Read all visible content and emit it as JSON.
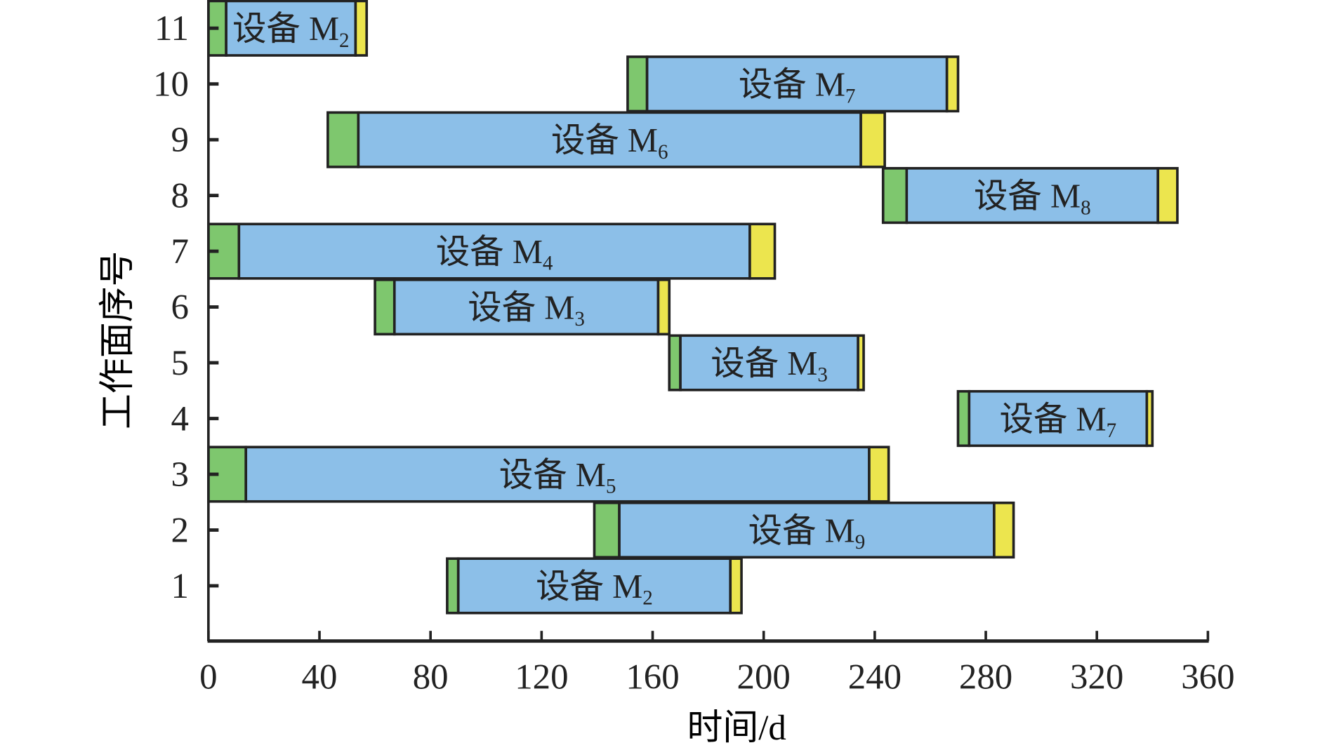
{
  "chart_data": {
    "type": "gantt",
    "xlabel": "时间/d",
    "ylabel": "工作面序号",
    "xlim": [
      0,
      360
    ],
    "xticks": [
      0,
      40,
      80,
      120,
      160,
      200,
      240,
      280,
      320,
      360
    ],
    "yticks": [
      1,
      2,
      3,
      4,
      5,
      6,
      7,
      8,
      9,
      10,
      11
    ],
    "colors": {
      "install": "#7ec76e",
      "work": "#8cbfe8",
      "remove": "#ece54e",
      "edge": "#222222"
    },
    "tasks": [
      {
        "row": 11,
        "label": "设备 M",
        "sub": "2",
        "start": 0,
        "install_end": 6.4,
        "work_end": 53,
        "end": 57
      },
      {
        "row": 10,
        "label": "设备 M",
        "sub": "7",
        "start": 151,
        "install_end": 158,
        "work_end": 266,
        "end": 270
      },
      {
        "row": 9,
        "label": "设备 M",
        "sub": "6",
        "start": 43,
        "install_end": 54,
        "work_end": 235,
        "end": 243.6
      },
      {
        "row": 8,
        "label": "设备 M",
        "sub": "8",
        "start": 243,
        "install_end": 251.5,
        "work_end": 342,
        "end": 349
      },
      {
        "row": 7,
        "label": "设备 M",
        "sub": "4",
        "start": 0,
        "install_end": 11,
        "work_end": 195,
        "end": 204
      },
      {
        "row": 6,
        "label": "设备 M",
        "sub": "3",
        "start": 60,
        "install_end": 67,
        "work_end": 162,
        "end": 166
      },
      {
        "row": 5,
        "label": "设备 M",
        "sub": "3",
        "start": 166,
        "install_end": 170,
        "work_end": 234,
        "end": 236
      },
      {
        "row": 4,
        "label": "设备 M",
        "sub": "7",
        "start": 270,
        "install_end": 274,
        "work_end": 338,
        "end": 340
      },
      {
        "row": 3,
        "label": "设备 M",
        "sub": "5",
        "start": 0,
        "install_end": 13.5,
        "work_end": 238,
        "end": 245
      },
      {
        "row": 2,
        "label": "设备 M",
        "sub": "9",
        "start": 139,
        "install_end": 148,
        "work_end": 283,
        "end": 290
      },
      {
        "row": 1,
        "label": "设备 M",
        "sub": "2",
        "start": 86,
        "install_end": 90,
        "work_end": 188,
        "end": 192
      }
    ]
  }
}
